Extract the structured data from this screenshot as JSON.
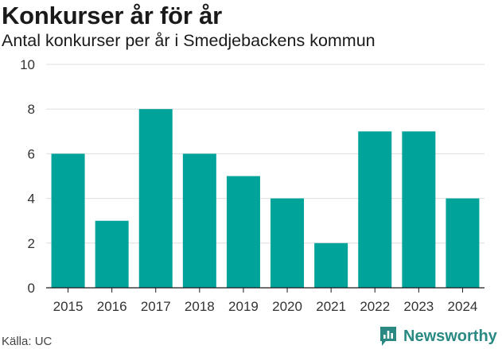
{
  "header": {
    "title": "Konkurser år för år",
    "subtitle": "Antal konkurser per år i Smedjebackens kommun"
  },
  "footer": {
    "source": "Källa: UC",
    "brand": "Newsworthy",
    "brand_icon": "newsworthy-logo-icon"
  },
  "colors": {
    "bar": "#00a39a",
    "grid": "#dddddd",
    "axis": "#1a1a1a",
    "brand": "#2a8a83"
  },
  "chart_data": {
    "type": "bar",
    "title": "Konkurser år för år",
    "subtitle": "Antal konkurser per år i Smedjebackens kommun",
    "categories": [
      "2015",
      "2016",
      "2017",
      "2018",
      "2019",
      "2020",
      "2021",
      "2022",
      "2023",
      "2024"
    ],
    "values": [
      6,
      3,
      8,
      6,
      5,
      4,
      2,
      7,
      7,
      4
    ],
    "yticks": [
      0,
      2,
      4,
      6,
      8,
      10
    ],
    "ylim": [
      0,
      10
    ],
    "grid": true,
    "legend": "none"
  }
}
